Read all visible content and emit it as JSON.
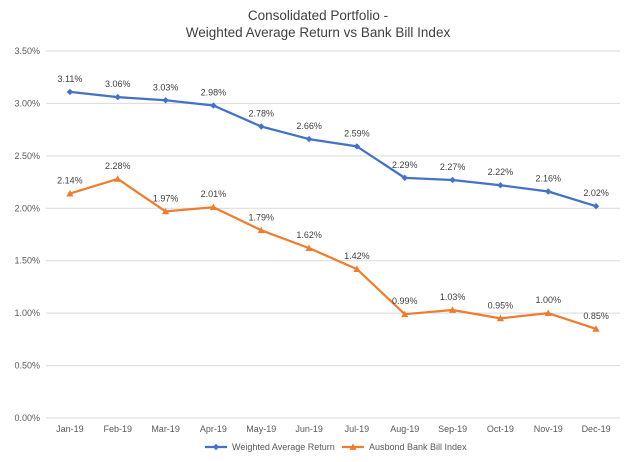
{
  "chart_data": {
    "type": "line",
    "title_lines": [
      "Consolidated Portfolio -",
      "Weighted Average Return vs Bank Bill Index"
    ],
    "categories": [
      "Jan-19",
      "Feb-19",
      "Mar-19",
      "Apr-19",
      "May-19",
      "Jun-19",
      "Jul-19",
      "Aug-19",
      "Sep-19",
      "Oct-19",
      "Nov-19",
      "Dec-19"
    ],
    "series": [
      {
        "name": "Weighted Average Return",
        "color": "#4472C4",
        "marker": "diamond",
        "values": [
          3.11,
          3.06,
          3.03,
          2.98,
          2.78,
          2.66,
          2.59,
          2.29,
          2.27,
          2.22,
          2.16,
          2.02
        ],
        "labels": [
          "3.11%",
          "3.06%",
          "3.03%",
          "2.98%",
          "2.78%",
          "2.66%",
          "2.59%",
          "2.29%",
          "2.27%",
          "2.22%",
          "2.16%",
          "2.02%"
        ]
      },
      {
        "name": "Ausbond Bank Bill Index",
        "color": "#ED7D31",
        "marker": "triangle",
        "values": [
          2.14,
          2.28,
          1.97,
          2.01,
          1.79,
          1.62,
          1.42,
          0.99,
          1.03,
          0.95,
          1.0,
          0.85
        ],
        "labels": [
          "2.14%",
          "2.28%",
          "1.97%",
          "2.01%",
          "1.79%",
          "1.62%",
          "1.42%",
          "0.99%",
          "1.03%",
          "0.95%",
          "1.00%",
          "0.85%"
        ]
      }
    ],
    "yticks": [
      "0.00%",
      "0.50%",
      "1.00%",
      "1.50%",
      "2.00%",
      "2.50%",
      "3.00%",
      "3.50%"
    ],
    "ylim": [
      0,
      3.5
    ],
    "grid": true,
    "legend": "bottom-center",
    "gridline_color": "#D9D9D9"
  }
}
